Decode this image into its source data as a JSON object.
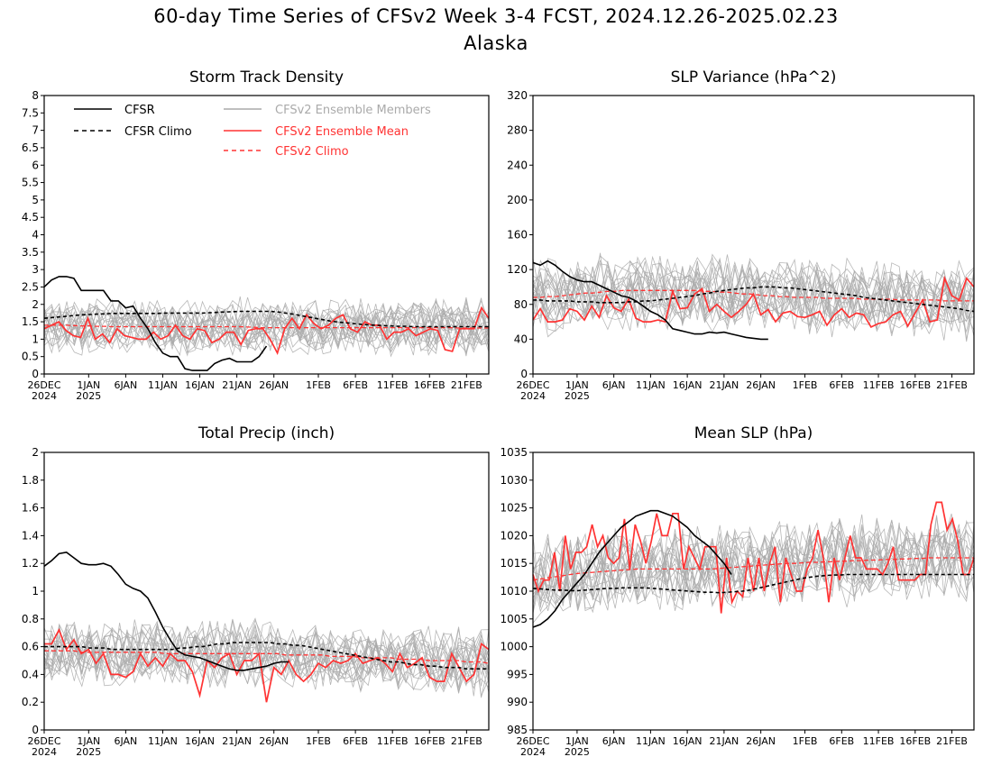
{
  "header": {
    "title": "60-day Time Series of CFSv2 Week 3-4 FCST, 2024.12.26-2025.02.23",
    "region": "Alaska"
  },
  "legend": {
    "cfsr": "CFSR",
    "cfsr_climo": "CFSR Climo",
    "members": "CFSv2 Ensemble Members",
    "ens_mean": "CFSv2 Ensemble Mean",
    "cfsv2_climo": "CFSv2 Climo"
  },
  "colors": {
    "cfsr": "#000000",
    "ens_mean": "#ff3333",
    "members": "#aaaaaa",
    "cfsv2_climo": "#ff3333"
  },
  "x_axis": {
    "days": 60,
    "tick_labels": [
      "26DEC",
      "1JAN",
      "6JAN",
      "11JAN",
      "16JAN",
      "21JAN",
      "26JAN",
      "1FEB",
      "6FEB",
      "11FEB",
      "16FEB",
      "21FEB"
    ],
    "tick_days": [
      0,
      6,
      11,
      16,
      21,
      26,
      31,
      37,
      42,
      47,
      52,
      57
    ],
    "year_labels": [
      {
        "day": 0,
        "text": "2024"
      },
      {
        "day": 6,
        "text": "2025"
      }
    ]
  },
  "chart_data": [
    {
      "type": "line",
      "title": "Storm Track Density",
      "ylim": [
        0,
        8
      ],
      "yticks": [
        "0",
        "0.5",
        "1",
        "1.5",
        "2",
        "2.5",
        "3",
        "3.5",
        "4",
        "4.5",
        "5",
        "5.5",
        "6",
        "6.5",
        "7",
        "7.5",
        "8"
      ],
      "cfsr": [
        2.5,
        2.7,
        2.8,
        2.8,
        2.75,
        2.4,
        2.4,
        2.4,
        2.4,
        2.1,
        2.1,
        1.9,
        1.95,
        1.6,
        1.3,
        0.9,
        0.6,
        0.5,
        0.5,
        0.15,
        0.1,
        0.1,
        0.1,
        0.3,
        0.4,
        0.45,
        0.35,
        0.35,
        0.35,
        0.5,
        0.8
      ],
      "cfsr_climo": [
        1.6,
        1.62,
        1.64,
        1.66,
        1.68,
        1.7,
        1.71,
        1.72,
        1.73,
        1.74,
        1.74,
        1.74,
        1.74,
        1.74,
        1.74,
        1.74,
        1.75,
        1.75,
        1.75,
        1.75,
        1.75,
        1.75,
        1.76,
        1.77,
        1.78,
        1.79,
        1.8,
        1.8,
        1.8,
        1.8,
        1.8,
        1.78,
        1.75,
        1.72,
        1.68,
        1.64,
        1.6,
        1.56,
        1.52,
        1.49,
        1.47,
        1.45,
        1.43,
        1.41,
        1.4,
        1.39,
        1.38,
        1.37,
        1.37,
        1.36,
        1.36,
        1.36,
        1.36,
        1.36,
        1.36,
        1.36,
        1.36,
        1.36,
        1.36,
        1.36
      ],
      "ens_mean": [
        1.3,
        1.4,
        1.5,
        1.25,
        1.1,
        1.05,
        1.6,
        1.0,
        1.15,
        0.9,
        1.3,
        1.1,
        1.05,
        1.0,
        1.0,
        1.2,
        1.0,
        1.1,
        1.4,
        1.1,
        1.0,
        1.3,
        1.25,
        0.9,
        1.0,
        1.2,
        1.2,
        0.85,
        1.25,
        1.3,
        1.3,
        1.0,
        0.6,
        1.3,
        1.6,
        1.3,
        1.7,
        1.45,
        1.3,
        1.4,
        1.6,
        1.7,
        1.3,
        1.2,
        1.5,
        1.4,
        1.4,
        1.0,
        1.2,
        1.2,
        1.3,
        1.1,
        1.2,
        1.3,
        1.25,
        0.7,
        0.65,
        1.3,
        1.3,
        1.3,
        1.9,
        1.6
      ],
      "cfsv2_climo": [
        1.4,
        1.4,
        1.4,
        1.4,
        1.39,
        1.38,
        1.38,
        1.37,
        1.37,
        1.36,
        1.36,
        1.36,
        1.36,
        1.36,
        1.36,
        1.36,
        1.36,
        1.36,
        1.36,
        1.36,
        1.36,
        1.36,
        1.36,
        1.36,
        1.36,
        1.36,
        1.36,
        1.35,
        1.34,
        1.33,
        1.33,
        1.33,
        1.33,
        1.33,
        1.33,
        1.33,
        1.33,
        1.33,
        1.33,
        1.33,
        1.33,
        1.33,
        1.33,
        1.33,
        1.33,
        1.33,
        1.33,
        1.33,
        1.33,
        1.33,
        1.33,
        1.33,
        1.33,
        1.33,
        1.33,
        1.32,
        1.32,
        1.32,
        1.32,
        1.32
      ],
      "member_center": "cfsv2_climo",
      "member_spread": 0.75,
      "member_floor": 0,
      "member_count": 20
    },
    {
      "type": "line",
      "title": "SLP Variance (hPa^2)",
      "ylim": [
        0,
        320
      ],
      "yticks": [
        "0",
        "40",
        "80",
        "120",
        "160",
        "200",
        "240",
        "280",
        "320"
      ],
      "cfsr": [
        128,
        125,
        130,
        125,
        118,
        112,
        108,
        106,
        106,
        102,
        98,
        94,
        90,
        88,
        84,
        78,
        72,
        68,
        62,
        52,
        50,
        48,
        46,
        46,
        48,
        47,
        48,
        46,
        44,
        42,
        41,
        40,
        40
      ],
      "cfsr_climo": [
        85,
        85,
        84,
        84,
        84,
        84,
        83,
        83,
        83,
        82,
        82,
        82,
        82,
        83,
        83,
        84,
        84,
        85,
        86,
        87,
        88,
        89,
        90,
        92,
        93,
        95,
        96,
        97,
        98,
        99,
        99,
        100,
        100,
        100,
        99,
        99,
        98,
        97,
        96,
        95,
        94,
        93,
        92,
        91,
        90,
        88,
        87,
        86,
        85,
        84,
        83,
        82,
        81,
        80,
        79,
        78,
        77,
        76,
        75,
        73,
        72
      ],
      "ens_mean": [
        62,
        75,
        60,
        60,
        62,
        75,
        72,
        62,
        78,
        65,
        90,
        76,
        72,
        86,
        64,
        60,
        60,
        62,
        60,
        95,
        75,
        76,
        92,
        98,
        72,
        80,
        72,
        65,
        72,
        80,
        92,
        68,
        74,
        60,
        70,
        72,
        66,
        65,
        68,
        72,
        56,
        68,
        75,
        65,
        70,
        68,
        54,
        58,
        60,
        68,
        72,
        55,
        70,
        85,
        60,
        62,
        110,
        90,
        85,
        110,
        100
      ],
      "cfsv2_climo": [
        88,
        88,
        89,
        89,
        90,
        91,
        92,
        93,
        93,
        94,
        95,
        95,
        96,
        96,
        96,
        96,
        96,
        96,
        96,
        96,
        96,
        96,
        96,
        95,
        95,
        94,
        94,
        93,
        92,
        92,
        91,
        90,
        90,
        89,
        89,
        88,
        88,
        88,
        88,
        87,
        87,
        87,
        87,
        87,
        86,
        86,
        86,
        86,
        86,
        85,
        85,
        85,
        85,
        85,
        85,
        84,
        84,
        84,
        84,
        84
      ],
      "member_center": "cfsv2_climo",
      "member_spread": 40,
      "member_floor": 20,
      "member_count": 20
    },
    {
      "type": "line",
      "title": "Total Precip (inch)",
      "ylim": [
        0,
        2
      ],
      "yticks": [
        "0",
        "0.2",
        "0.4",
        "0.6",
        "0.8",
        "1",
        "1.2",
        "1.4",
        "1.6",
        "1.8",
        "2"
      ],
      "cfsr": [
        1.18,
        1.22,
        1.27,
        1.28,
        1.24,
        1.2,
        1.19,
        1.19,
        1.2,
        1.18,
        1.12,
        1.05,
        1.02,
        1.0,
        0.95,
        0.85,
        0.74,
        0.65,
        0.57,
        0.54,
        0.53,
        0.52,
        0.5,
        0.48,
        0.46,
        0.44,
        0.43,
        0.43,
        0.44,
        0.45,
        0.46,
        0.48,
        0.49,
        0.49
      ],
      "cfsr_climo": [
        0.6,
        0.6,
        0.6,
        0.6,
        0.6,
        0.6,
        0.59,
        0.59,
        0.59,
        0.58,
        0.58,
        0.58,
        0.58,
        0.58,
        0.58,
        0.58,
        0.58,
        0.58,
        0.59,
        0.59,
        0.6,
        0.6,
        0.61,
        0.62,
        0.62,
        0.63,
        0.63,
        0.63,
        0.63,
        0.63,
        0.63,
        0.62,
        0.62,
        0.61,
        0.61,
        0.6,
        0.59,
        0.58,
        0.57,
        0.56,
        0.55,
        0.54,
        0.53,
        0.52,
        0.51,
        0.5,
        0.49,
        0.49,
        0.48,
        0.47,
        0.47,
        0.46,
        0.46,
        0.45,
        0.45,
        0.45,
        0.44,
        0.44,
        0.44,
        0.44
      ],
      "ens_mean": [
        0.62,
        0.62,
        0.72,
        0.58,
        0.65,
        0.55,
        0.58,
        0.48,
        0.55,
        0.4,
        0.4,
        0.38,
        0.42,
        0.55,
        0.46,
        0.52,
        0.46,
        0.55,
        0.5,
        0.5,
        0.42,
        0.25,
        0.5,
        0.45,
        0.52,
        0.55,
        0.4,
        0.5,
        0.5,
        0.55,
        0.2,
        0.45,
        0.4,
        0.5,
        0.4,
        0.35,
        0.4,
        0.48,
        0.45,
        0.5,
        0.48,
        0.5,
        0.55,
        0.48,
        0.5,
        0.52,
        0.48,
        0.42,
        0.55,
        0.45,
        0.48,
        0.52,
        0.38,
        0.35,
        0.35,
        0.55,
        0.45,
        0.35,
        0.4,
        0.62,
        0.58
      ],
      "cfsv2_climo": [
        0.57,
        0.57,
        0.57,
        0.57,
        0.57,
        0.56,
        0.56,
        0.56,
        0.56,
        0.56,
        0.56,
        0.56,
        0.56,
        0.56,
        0.56,
        0.56,
        0.55,
        0.55,
        0.55,
        0.55,
        0.55,
        0.55,
        0.55,
        0.55,
        0.55,
        0.55,
        0.55,
        0.55,
        0.55,
        0.55,
        0.55,
        0.55,
        0.54,
        0.54,
        0.54,
        0.54,
        0.54,
        0.54,
        0.53,
        0.53,
        0.53,
        0.53,
        0.52,
        0.52,
        0.52,
        0.52,
        0.52,
        0.51,
        0.51,
        0.51,
        0.51,
        0.5,
        0.5,
        0.5,
        0.5,
        0.5,
        0.49,
        0.49,
        0.49,
        0.48
      ],
      "member_center": "cfsv2_climo",
      "member_spread": 0.22,
      "member_floor": 0.05,
      "member_count": 20
    },
    {
      "type": "line",
      "title": "Mean SLP (hPa)",
      "ylim": [
        985,
        1035
      ],
      "yticks": [
        "985",
        "990",
        "995",
        "1000",
        "1005",
        "1010",
        "1015",
        "1020",
        "1025",
        "1030",
        "1035"
      ],
      "cfsr": [
        1003.5,
        1004,
        1005,
        1006.5,
        1008.5,
        1010,
        1011.5,
        1013,
        1015,
        1017,
        1018.5,
        1020,
        1021.5,
        1022.5,
        1023.5,
        1024,
        1024.5,
        1024.5,
        1024,
        1023.5,
        1022.5,
        1021.5,
        1020,
        1019,
        1018,
        1016.5,
        1015,
        1013
      ],
      "cfsr_climo": [
        1010.5,
        1010.4,
        1010.3,
        1010.2,
        1010.2,
        1010.1,
        1010.1,
        1010.2,
        1010.3,
        1010.4,
        1010.5,
        1010.5,
        1010.6,
        1010.6,
        1010.6,
        1010.6,
        1010.5,
        1010.4,
        1010.3,
        1010.2,
        1010.1,
        1010,
        1009.9,
        1009.8,
        1009.8,
        1009.7,
        1009.8,
        1009.9,
        1010,
        1010.2,
        1010.5,
        1010.8,
        1011.1,
        1011.4,
        1011.7,
        1012,
        1012.3,
        1012.5,
        1012.7,
        1012.8,
        1012.9,
        1012.9,
        1013,
        1013,
        1013,
        1013,
        1013,
        1013,
        1013,
        1013,
        1013,
        1013,
        1013,
        1013,
        1013,
        1013,
        1013,
        1013,
        1013,
        1013
      ],
      "ens_mean": [
        1013,
        1010,
        1012,
        1012,
        1017,
        1010,
        1020,
        1014,
        1017,
        1017,
        1018,
        1022,
        1018,
        1020,
        1016,
        1015,
        1016,
        1023,
        1014,
        1022,
        1019,
        1015,
        1019,
        1024,
        1020,
        1020,
        1024,
        1024,
        1014,
        1018,
        1016,
        1014,
        1018,
        1018,
        1018,
        1006,
        1016,
        1008,
        1010,
        1009,
        1016,
        1010,
        1016,
        1010,
        1015,
        1018,
        1008,
        1016,
        1013,
        1010,
        1010,
        1014,
        1016,
        1021,
        1016,
        1008,
        1016,
        1012,
        1016,
        1020,
        1016,
        1016,
        1014,
        1014,
        1014,
        1013,
        1015,
        1018,
        1012,
        1012,
        1012,
        1012,
        1013,
        1013,
        1022,
        1026,
        1026,
        1021,
        1023,
        1019,
        1013,
        1013,
        1016
      ],
      "cfsv2_climo": [
        1012,
        1012.2,
        1012.4,
        1012.6,
        1012.8,
        1013,
        1013.2,
        1013.3,
        1013.4,
        1013.5,
        1013.6,
        1013.7,
        1013.8,
        1013.9,
        1014,
        1014,
        1014,
        1014,
        1014,
        1014,
        1014,
        1014,
        1014,
        1014,
        1014,
        1014.1,
        1014.2,
        1014.3,
        1014.4,
        1014.5,
        1014.6,
        1014.7,
        1014.8,
        1014.9,
        1015,
        1015,
        1015.1,
        1015.2,
        1015.2,
        1015.3,
        1015.3,
        1015.4,
        1015.4,
        1015.5,
        1015.5,
        1015.6,
        1015.6,
        1015.7,
        1015.7,
        1015.8,
        1015.8,
        1015.9,
        1015.9,
        1016,
        1016,
        1016,
        1016,
        1016,
        1016,
        1016
      ],
      "member_center": "cfsv2_climo",
      "member_spread": 7,
      "member_floor": 995,
      "member_count": 20
    }
  ]
}
